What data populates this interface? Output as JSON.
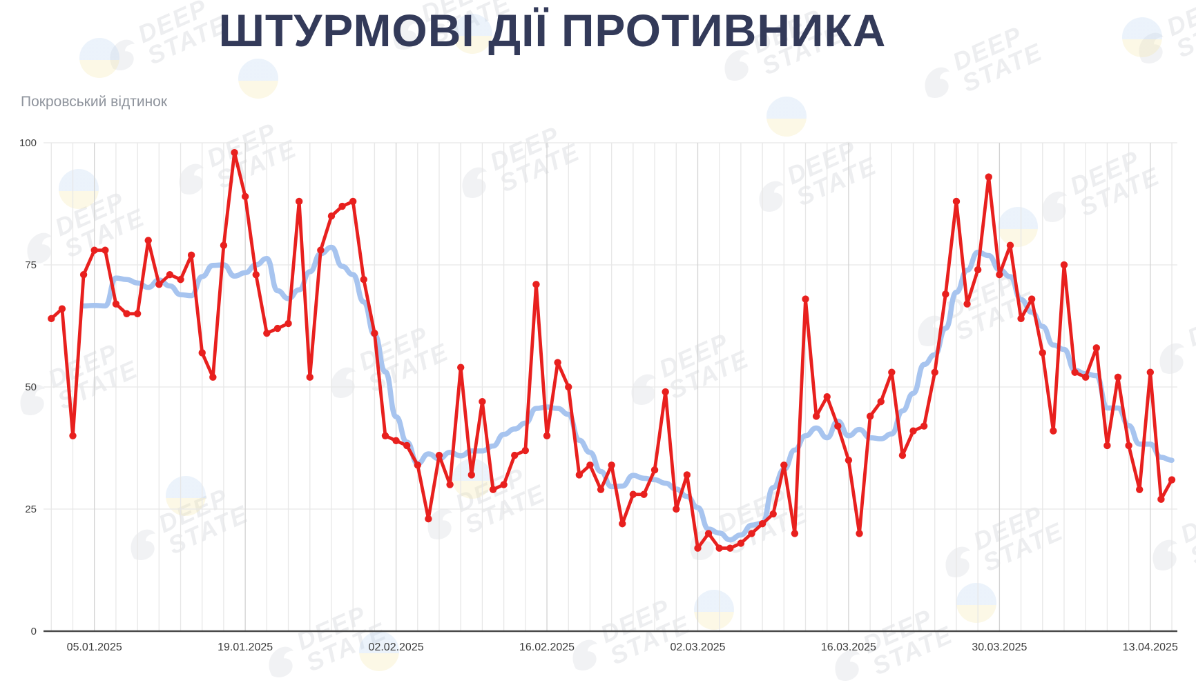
{
  "title": "ШТУРМОВІ ДІЇ ПРОТИВНИКА",
  "subtitle": "Покровський відтинок",
  "watermark": {
    "line1": "DEEP",
    "line2": "STATE"
  },
  "colors": {
    "red_series": "#e8201e",
    "blue_series": "#a7c4ef",
    "title_text": "#333a59",
    "subtitle_text": "#8e939c",
    "axis_line": "#4a4a4a",
    "grid_minor": "#e7e7e7",
    "grid_major": "#d2d2d2",
    "tick_text": "#3c3c3c"
  },
  "chart_data": {
    "type": "line",
    "title": "ШТУРМОВІ ДІЇ ПРОТИВНИКА",
    "subtitle": "Покровський відтинок",
    "xlabel": "",
    "ylabel": "",
    "ylim": [
      0,
      100
    ],
    "y_ticks": [
      0,
      25,
      50,
      75,
      100
    ],
    "grid": true,
    "x_start_date": "01.01.2025",
    "x_end_date": "15.04.2025",
    "x_tick_labels": [
      "05.01.2025",
      "19.01.2025",
      "02.02.2025",
      "16.02.2025",
      "02.03.2025",
      "16.03.2025",
      "30.03.2025",
      "13.04.2025"
    ],
    "x_tick_day_indices": [
      4,
      18,
      32,
      46,
      60,
      74,
      88,
      102
    ],
    "series": [
      {
        "name": "daily-assaults",
        "legend": "",
        "style": "line+markers",
        "color": "#e8201e",
        "start_index": 0,
        "values": [
          64,
          66,
          40,
          73,
          78,
          78,
          67,
          65,
          65,
          80,
          71,
          73,
          72,
          77,
          57,
          52,
          79,
          98,
          89,
          73,
          61,
          62,
          63,
          88,
          52,
          78,
          85,
          87,
          88,
          72,
          61,
          40,
          39,
          38,
          34,
          23,
          36,
          30,
          54,
          32,
          47,
          29,
          30,
          36,
          37,
          71,
          40,
          55,
          50,
          32,
          34,
          29,
          34,
          22,
          28,
          28,
          33,
          49,
          25,
          32,
          17,
          20,
          17,
          17,
          18,
          20,
          22,
          24,
          34,
          20,
          68,
          44,
          48,
          42,
          35,
          20,
          44,
          47,
          53,
          36,
          41,
          42,
          53,
          69,
          88,
          67,
          74,
          93,
          73,
          79,
          64,
          68,
          57,
          41,
          75,
          53,
          52,
          58,
          38,
          52,
          38,
          29,
          53,
          27,
          31
        ]
      },
      {
        "name": "seven-day-average",
        "legend": "",
        "style": "smooth-line",
        "color": "#a7c4ef",
        "start_index": 3,
        "values": [
          66.6,
          66.7,
          66.6,
          72.3,
          72.0,
          71.3,
          70.4,
          71.9,
          70.7,
          68.9,
          68.7,
          72.6,
          74.9,
          75.0,
          72.7,
          73.4,
          75.0,
          76.3,
          69.7,
          68.1,
          69.9,
          73.6,
          77.3,
          78.6,
          74.7,
          73.0,
          67.4,
          60.7,
          53.1,
          43.9,
          38.7,
          34.3,
          36.3,
          35.3,
          36.6,
          35.9,
          36.9,
          36.9,
          37.9,
          40.3,
          41.4,
          42.6,
          45.6,
          45.9,
          45.6,
          44.4,
          39.1,
          36.6,
          32.7,
          29.6,
          29.7,
          31.9,
          31.3,
          31.0,
          30.3,
          29.1,
          27.6,
          25.3,
          20.9,
          20.1,
          18.7,
          19.7,
          21.7,
          22.1,
          29.4,
          33.1,
          37.1,
          40.0,
          41.6,
          39.6,
          43.0,
          40.0,
          41.3,
          39.6,
          39.4,
          40.4,
          45.1,
          48.7,
          54.6,
          56.6,
          62.0,
          69.4,
          73.9,
          77.6,
          76.9,
          74.0,
          72.6,
          67.9,
          65.3,
          62.4,
          58.6,
          57.7,
          53.4,
          52.7,
          52.3,
          45.7,
          45.7,
          42.1,
          38.3,
          38.3,
          35.6,
          35.0
        ]
      }
    ]
  }
}
